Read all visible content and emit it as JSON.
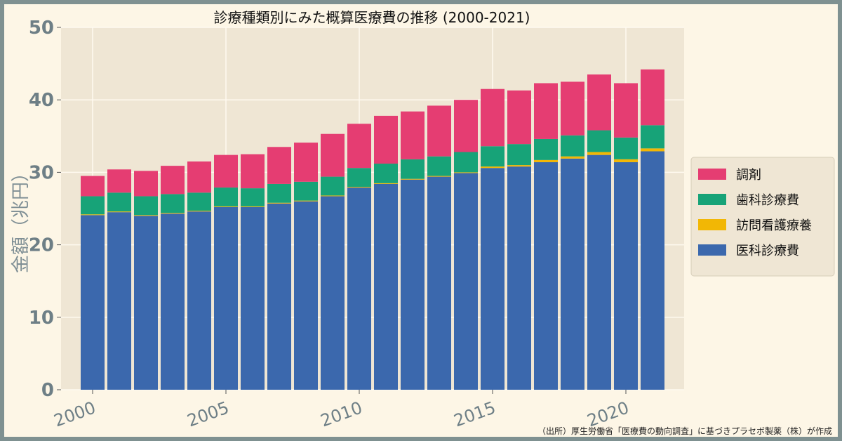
{
  "chart_data": {
    "type": "bar",
    "stacked": true,
    "title": "診療種類別にみた概算医療費の推移 (2000-2021)",
    "ylabel": "金額（兆円）",
    "xlabel": "",
    "ylim": [
      0,
      50
    ],
    "yticks": [
      "0",
      "10",
      "20",
      "30",
      "40",
      "50"
    ],
    "xticks": [
      "2000",
      "2005",
      "2010",
      "2015",
      "2020"
    ],
    "categories": [
      2000,
      2001,
      2002,
      2003,
      2004,
      2005,
      2006,
      2007,
      2008,
      2009,
      2010,
      2011,
      2012,
      2013,
      2014,
      2015,
      2016,
      2017,
      2018,
      2019,
      2020,
      2021
    ],
    "grid": true,
    "legend_position": "right",
    "series": [
      {
        "name": "医科診療費",
        "color": "#3b68ad",
        "values": [
          24.1,
          24.5,
          24.0,
          24.3,
          24.6,
          25.2,
          25.2,
          25.7,
          26.0,
          26.7,
          27.9,
          28.4,
          29.0,
          29.4,
          29.9,
          30.6,
          30.8,
          31.4,
          31.9,
          32.4,
          31.4,
          32.9
        ]
      },
      {
        "name": "訪問看護療養",
        "color": "#f2b705",
        "values": [
          0.1,
          0.1,
          0.1,
          0.1,
          0.1,
          0.1,
          0.1,
          0.1,
          0.1,
          0.1,
          0.1,
          0.1,
          0.1,
          0.1,
          0.1,
          0.2,
          0.2,
          0.3,
          0.3,
          0.4,
          0.4,
          0.4
        ]
      },
      {
        "name": "歯科診療費",
        "color": "#17a378",
        "values": [
          2.5,
          2.6,
          2.6,
          2.6,
          2.5,
          2.6,
          2.5,
          2.6,
          2.6,
          2.6,
          2.6,
          2.7,
          2.7,
          2.7,
          2.8,
          2.8,
          2.9,
          2.9,
          2.9,
          3.0,
          3.0,
          3.2
        ]
      },
      {
        "name": "調剤",
        "color": "#e53d72",
        "values": [
          2.8,
          3.2,
          3.5,
          3.9,
          4.3,
          4.5,
          4.7,
          5.1,
          5.4,
          5.9,
          6.1,
          6.6,
          6.6,
          7.0,
          7.2,
          7.9,
          7.4,
          7.7,
          7.4,
          7.7,
          7.5,
          7.7
        ]
      }
    ],
    "legend_order": [
      "調剤",
      "歯科診療費",
      "訪問看護療養",
      "医科診療費"
    ]
  },
  "source_note": "（出所）厚生労働省「医療費の動向調査」に基づきプラセボ製薬（株）が作成",
  "colors": {
    "page_border": "#7f9191",
    "background": "#fdf6e6",
    "plot_background": "#efe6d4",
    "grid": "#fffaf0",
    "tick_text": "#6e7f86"
  }
}
